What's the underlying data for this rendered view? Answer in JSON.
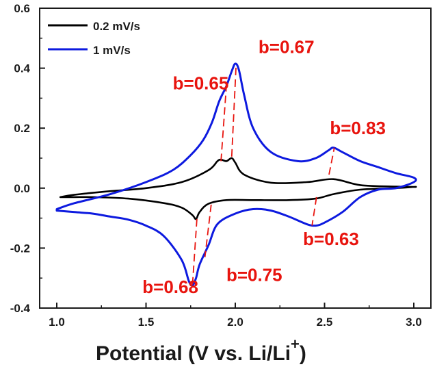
{
  "chart_data": {
    "type": "line",
    "xlabel": "Potential (V vs. Li/Li",
    "xlabel_sup": "+",
    "xlabel_close": ")",
    "ylabel": "",
    "xlim": [
      1.0,
      3.0
    ],
    "ylim": [
      -0.4,
      0.6
    ],
    "xticks": [
      "1.0",
      "1.5",
      "2.0",
      "2.5",
      "3.0"
    ],
    "yticks": [
      "-0.4",
      "-0.2",
      "0.0",
      "0.2",
      "0.4",
      "0.6"
    ],
    "legend_position": "top-left",
    "colors": {
      "series_0": "#000000",
      "series_1": "#0d1adf",
      "annotation": "#e8140e",
      "axis": "#1a1a1a"
    },
    "series": [
      {
        "name": "0.2 mV/s",
        "color": "#000000",
        "x": [
          1.02,
          1.1,
          1.3,
          1.5,
          1.7,
          1.85,
          1.9,
          1.92,
          1.95,
          1.98,
          2.0,
          2.05,
          2.2,
          2.4,
          2.55,
          2.7,
          2.9,
          3.0,
          3.0,
          2.9,
          2.7,
          2.55,
          2.45,
          2.3,
          2.1,
          1.95,
          1.85,
          1.8,
          1.78,
          1.76,
          1.7,
          1.6,
          1.4,
          1.2,
          1.1,
          1.02
        ],
        "y": [
          -0.03,
          -0.022,
          -0.01,
          0.0,
          0.02,
          0.06,
          0.09,
          0.095,
          0.09,
          0.1,
          0.085,
          0.045,
          0.018,
          0.02,
          0.03,
          0.01,
          0.005,
          0.004,
          0.004,
          0.0,
          -0.005,
          -0.02,
          -0.035,
          -0.04,
          -0.04,
          -0.04,
          -0.052,
          -0.08,
          -0.103,
          -0.09,
          -0.065,
          -0.05,
          -0.035,
          -0.03,
          -0.03,
          -0.03
        ]
      },
      {
        "name": "1 mV/s",
        "color": "#0d1adf",
        "x": [
          1.0,
          1.1,
          1.3,
          1.5,
          1.65,
          1.75,
          1.82,
          1.87,
          1.91,
          1.95,
          1.98,
          2.0,
          2.02,
          2.05,
          2.1,
          2.2,
          2.35,
          2.45,
          2.52,
          2.55,
          2.6,
          2.7,
          2.8,
          2.9,
          3.0,
          3.0,
          2.9,
          2.8,
          2.7,
          2.6,
          2.5,
          2.45,
          2.4,
          2.3,
          2.2,
          2.1,
          2.0,
          1.9,
          1.85,
          1.8,
          1.78,
          1.76,
          1.74,
          1.7,
          1.6,
          1.5,
          1.4,
          1.3,
          1.2,
          1.1,
          1.0
        ],
        "y": [
          -0.07,
          -0.05,
          -0.02,
          0.02,
          0.06,
          0.11,
          0.16,
          0.22,
          0.29,
          0.34,
          0.39,
          0.415,
          0.395,
          0.31,
          0.2,
          0.12,
          0.09,
          0.1,
          0.125,
          0.135,
          0.12,
          0.09,
          0.07,
          0.05,
          0.035,
          0.02,
          0.0,
          -0.005,
          -0.03,
          -0.08,
          -0.115,
          -0.125,
          -0.12,
          -0.095,
          -0.075,
          -0.07,
          -0.085,
          -0.12,
          -0.19,
          -0.255,
          -0.3,
          -0.325,
          -0.31,
          -0.24,
          -0.16,
          -0.125,
          -0.105,
          -0.095,
          -0.085,
          -0.08,
          -0.075
        ]
      }
    ],
    "annotations": [
      {
        "text": "b=0.67",
        "lx": 2.13,
        "ly": 0.45
      },
      {
        "text": "b=0.65",
        "lx": 1.65,
        "ly": 0.33
      },
      {
        "text": "b=0.83",
        "lx": 2.53,
        "ly": 0.18
      },
      {
        "text": "b=0.63",
        "lx": 2.38,
        "ly": -0.19
      },
      {
        "text": "b=0.75",
        "lx": 1.95,
        "ly": -0.31
      },
      {
        "text": "b=0.68",
        "lx": 1.48,
        "ly": -0.35
      }
    ],
    "dashed_segments": [
      {
        "x1": 1.98,
        "y1": 0.105,
        "x2": 2.005,
        "y2": 0.415
      },
      {
        "x1": 1.92,
        "y1": 0.09,
        "x2": 1.95,
        "y2": 0.34
      },
      {
        "x1": 2.525,
        "y1": 0.045,
        "x2": 2.555,
        "y2": 0.135
      },
      {
        "x1": 2.455,
        "y1": -0.03,
        "x2": 2.43,
        "y2": -0.125
      },
      {
        "x1": 1.785,
        "y1": -0.103,
        "x2": 1.76,
        "y2": -0.325
      },
      {
        "x1": 1.865,
        "y1": -0.055,
        "x2": 1.83,
        "y2": -0.23
      }
    ]
  }
}
